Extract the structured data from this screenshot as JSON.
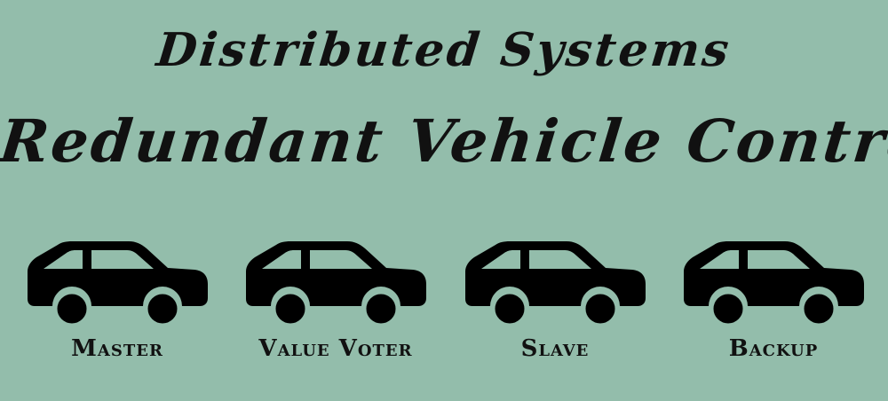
{
  "title_line1": "Distributed Systems",
  "title_line2": "Redundant Vehicle Control",
  "vehicles": [
    {
      "label": "Master",
      "icon": "car-icon"
    },
    {
      "label": "Value Voter",
      "icon": "car-icon"
    },
    {
      "label": "Slave",
      "icon": "car-icon"
    },
    {
      "label": "Backup",
      "icon": "car-icon"
    }
  ],
  "colors": {
    "background": "#93bdab",
    "foreground": "#111111"
  }
}
